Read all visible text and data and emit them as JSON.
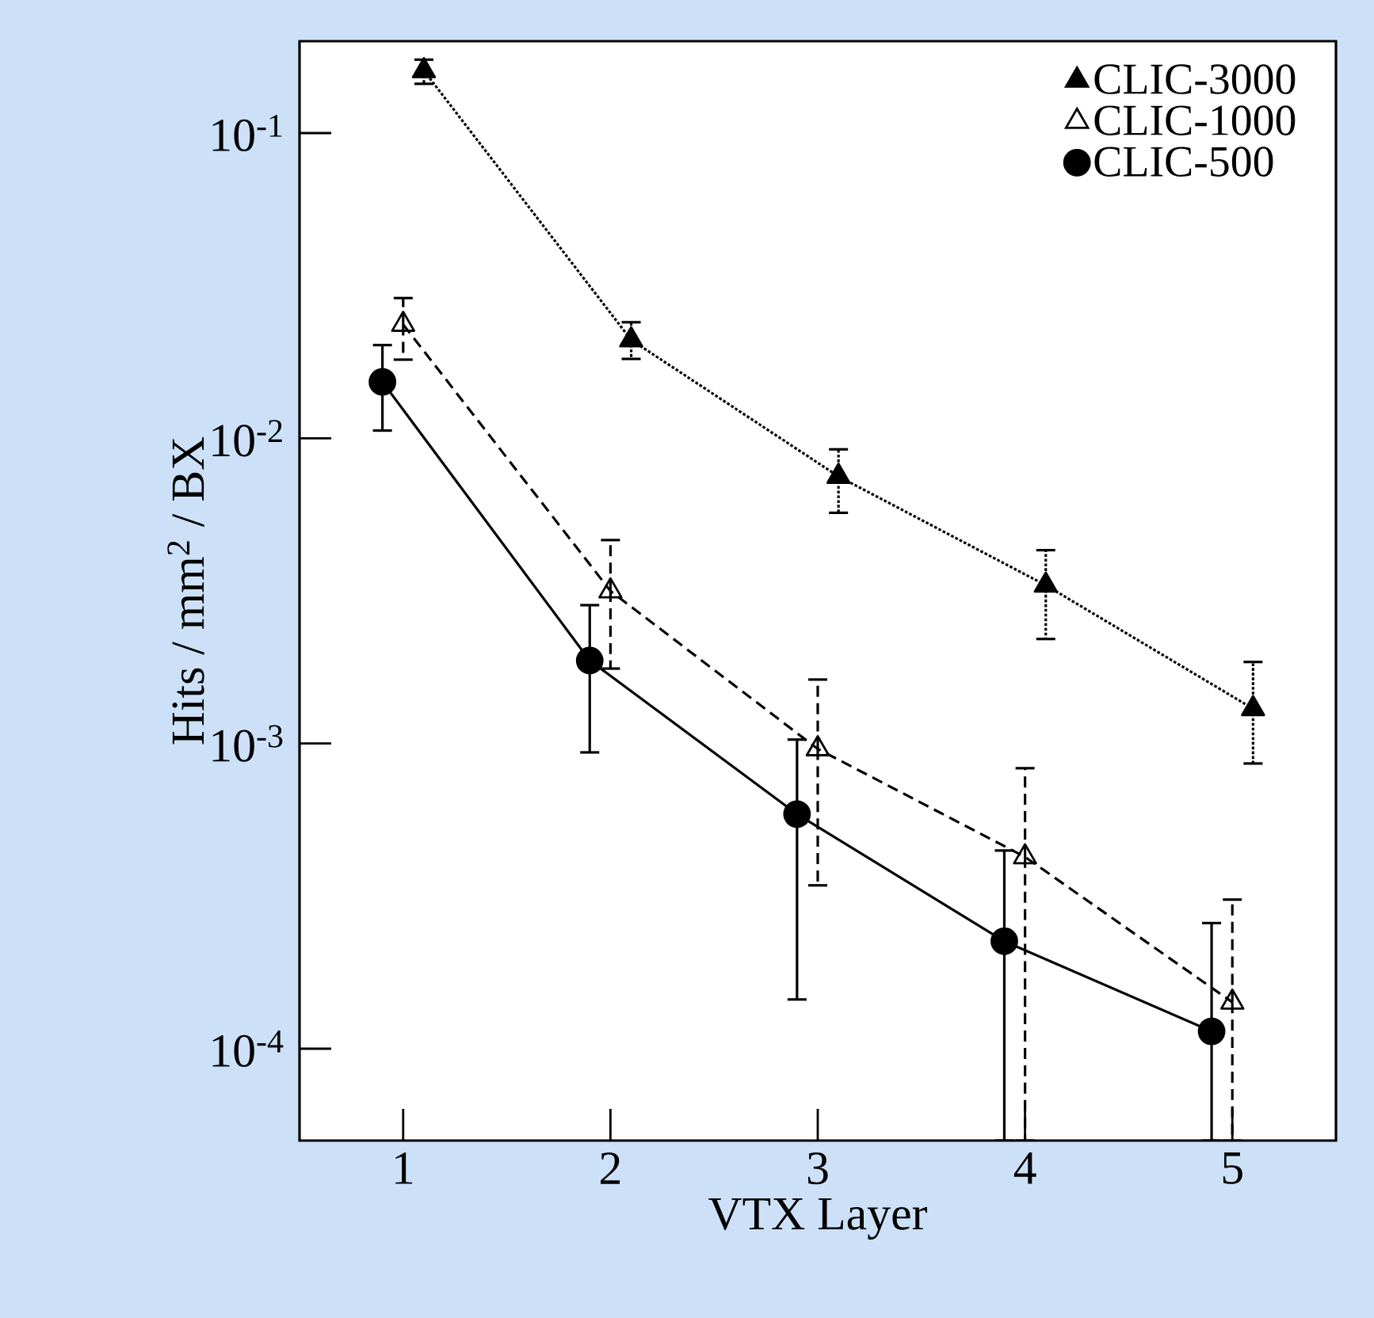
{
  "chart_data": {
    "type": "line",
    "xlabel": "VTX Layer",
    "ylabel": "Hits / mm$^{2}$ / BX",
    "log": "y",
    "legend": "top right",
    "grid": false,
    "xlim": [
      0.5,
      5.5
    ],
    "xticks": [
      1,
      2,
      3,
      4,
      5
    ],
    "ylim": [
      5e-05,
      0.2
    ],
    "yticks": [
      {
        "value": 0.1,
        "label": "10$^{-1}$"
      },
      {
        "value": 0.01,
        "label": "10$^{-2}$"
      },
      {
        "value": 0.001,
        "label": "10$^{-3}$"
      },
      {
        "value": 0.0001,
        "label": "10$^{-4}$"
      }
    ],
    "series": [
      {
        "name": "CLIC-3000",
        "color": "#000000",
        "marker": "triangle",
        "line_style": "dotted",
        "x": [
          1.1,
          2.1,
          3.1,
          4.1,
          5.1
        ],
        "values": [
          0.16,
          0.021,
          0.0075,
          0.0033,
          0.0013
        ],
        "errors": [
          [
            0.145,
            0.174
          ],
          [
            0.0182,
            0.024
          ],
          [
            0.0057,
            0.0092
          ],
          [
            0.0022,
            0.0043
          ],
          [
            0.00086,
            0.00185
          ]
        ]
      },
      {
        "name": "CLIC-1000",
        "color": "#000000",
        "marker": "triangle-open",
        "line_style": "dashed",
        "x": [
          1.0,
          2.0,
          3.0,
          4.0,
          5.0
        ],
        "values": [
          0.0236,
          0.00316,
          0.00096,
          0.000425,
          0.000142
        ],
        "errors": [
          [
            0.0181,
            0.0288
          ],
          [
            0.00176,
            0.00464
          ],
          [
            0.000343,
            0.00162
          ],
          [
            5e-05,
            0.00083
          ],
          [
            5e-05,
            0.000308
          ]
        ]
      },
      {
        "name": "CLIC-500",
        "color": "#000000",
        "marker": "circle",
        "line_style": "solid",
        "x": [
          0.9,
          1.9,
          2.9,
          3.9,
          4.9
        ],
        "values": [
          0.0153,
          0.00187,
          0.000587,
          0.000225,
          0.000114
        ],
        "errors": [
          [
            0.0106,
            0.0202
          ],
          [
            0.000935,
            0.00284
          ],
          [
            0.000145,
            0.00103
          ],
          [
            5e-05,
            0.000446
          ],
          [
            5e-05,
            0.000258
          ]
        ]
      }
    ]
  }
}
